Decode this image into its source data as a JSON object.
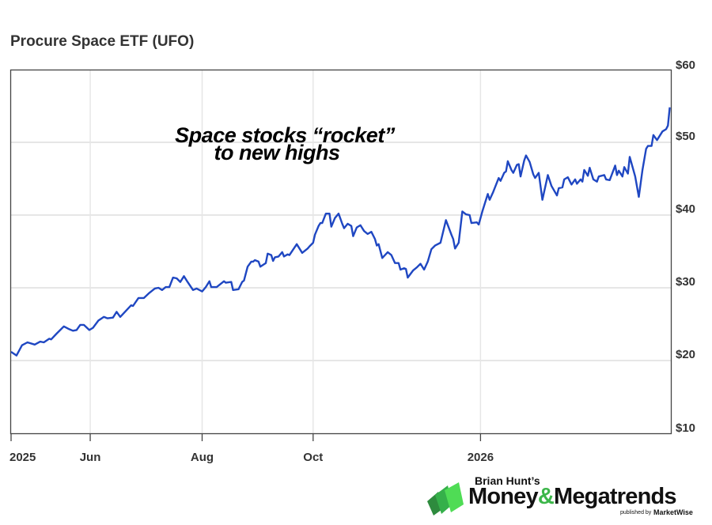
{
  "chart_data": {
    "type": "line",
    "title": "Procure Space ETF (UFO)",
    "annotation": [
      "Space stocks “rocket”",
      "to new highs"
    ],
    "xlabel": "",
    "ylabel": "",
    "x_unit": "days since first tick (2025)",
    "xlim": [
      0,
      362
    ],
    "ylim": [
      10,
      60
    ],
    "grid": true,
    "y_ticks": [
      {
        "value": 60,
        "label": "$60"
      },
      {
        "value": 50,
        "label": "$50"
      },
      {
        "value": 40,
        "label": "$40"
      },
      {
        "value": 30,
        "label": "$30"
      },
      {
        "value": 20,
        "label": "$20"
      },
      {
        "value": 10,
        "label": "$10"
      }
    ],
    "x_ticks": [
      {
        "value": 0,
        "label": "2025"
      },
      {
        "value": 43.5,
        "label": "Jun"
      },
      {
        "value": 105,
        "label": "Aug"
      },
      {
        "value": 166,
        "label": "Oct"
      },
      {
        "value": 258,
        "label": "2026"
      }
    ],
    "series": [
      {
        "name": "UFO",
        "color": "#1f47c2",
        "x": [
          0,
          3,
          6,
          9,
          13,
          16,
          18,
          21,
          22,
          25,
          29,
          32,
          34,
          36,
          38,
          40,
          43,
          45,
          48,
          51,
          53,
          56,
          58,
          60,
          63,
          66,
          67,
          70,
          73,
          76,
          79,
          81,
          83,
          85,
          87,
          89,
          91,
          93,
          95,
          97,
          100,
          102,
          105,
          107,
          109,
          110,
          113,
          117,
          118,
          121,
          122,
          125,
          127,
          128,
          130,
          132,
          133,
          134,
          136,
          137,
          140,
          141,
          143,
          144,
          145,
          147,
          149,
          150,
          152,
          153,
          157,
          160,
          163,
          164,
          166,
          167,
          169,
          170,
          171,
          173,
          175,
          176,
          178,
          180,
          182,
          183,
          185,
          187,
          188,
          190,
          192,
          194,
          196,
          198,
          200,
          201,
          202,
          204,
          207,
          209,
          211,
          213,
          214,
          216,
          217,
          218,
          221,
          223,
          225,
          227,
          229,
          231,
          233,
          236,
          239,
          242,
          243,
          244,
          246,
          248,
          250,
          252,
          253,
          256,
          257,
          259,
          262,
          263,
          265,
          268,
          269,
          271,
          272,
          273,
          275,
          276,
          278,
          279,
          280,
          282,
          283,
          285,
          287,
          288,
          290,
          292,
          295,
          297,
          300,
          301,
          303,
          304,
          306,
          308,
          310,
          311,
          313,
          314,
          315,
          317,
          318,
          320,
          322,
          323,
          326,
          327,
          329,
          332,
          333,
          334,
          336,
          337,
          339,
          340,
          343,
          345,
          347,
          349,
          350,
          352,
          353,
          355,
          358,
          360,
          361,
          362
        ],
        "values": [
          21.2,
          20.7,
          22.1,
          22.5,
          22.2,
          22.6,
          22.5,
          23.0,
          22.9,
          23.7,
          24.7,
          24.3,
          24.1,
          24.2,
          24.9,
          24.9,
          24.2,
          24.5,
          25.5,
          26.0,
          25.8,
          25.9,
          26.7,
          26.0,
          26.8,
          27.6,
          27.5,
          28.6,
          28.6,
          29.3,
          29.9,
          30.0,
          29.7,
          30.1,
          30.1,
          31.4,
          31.3,
          30.8,
          31.6,
          30.8,
          29.7,
          29.9,
          29.5,
          30.1,
          30.9,
          30.1,
          30.1,
          30.9,
          30.7,
          30.8,
          29.7,
          29.8,
          30.8,
          31.0,
          32.9,
          33.6,
          33.6,
          33.8,
          33.6,
          32.9,
          33.4,
          34.7,
          34.5,
          33.7,
          34.2,
          34.3,
          34.9,
          34.3,
          34.6,
          34.5,
          36.0,
          34.8,
          35.4,
          35.7,
          36.2,
          37.3,
          38.5,
          38.9,
          38.9,
          40.2,
          40.2,
          38.4,
          39.6,
          40.2,
          38.8,
          38.2,
          38.8,
          38.5,
          37.1,
          38.3,
          38.6,
          37.8,
          37.4,
          37.7,
          36.7,
          35.8,
          36.0,
          34.1,
          34.9,
          34.5,
          33.4,
          33.4,
          32.5,
          32.7,
          32.6,
          31.4,
          32.4,
          32.8,
          33.3,
          32.5,
          33.6,
          35.3,
          35.8,
          36.2,
          39.3,
          37.3,
          36.7,
          35.4,
          36.2,
          40.5,
          40.1,
          40.0,
          38.9,
          39.0,
          38.7,
          40.5,
          42.9,
          42.1,
          43.2,
          45.1,
          44.7,
          45.8,
          46.0,
          47.4,
          46.2,
          45.8,
          46.9,
          47.0,
          45.3,
          47.5,
          48.2,
          47.3,
          45.6,
          45.1,
          45.8,
          42.1,
          45.5,
          44.0,
          42.7,
          43.7,
          43.8,
          44.9,
          45.2,
          44.2,
          44.9,
          44.3,
          44.9,
          44.6,
          46.2,
          45.4,
          46.5,
          44.9,
          44.6,
          45.3,
          45.5,
          44.9,
          44.8,
          46.8,
          45.5,
          46.1,
          45.3,
          46.6,
          45.7,
          48.0,
          45.3,
          42.5,
          46.2,
          49.1,
          49.5,
          49.5,
          51.0,
          50.3,
          51.5,
          51.8,
          52.3,
          54.8
        ]
      }
    ]
  },
  "logo": {
    "byline": "Brian Hunt’s",
    "name_part1": "Money",
    "ampersand": "&",
    "name_part2": "Megatrends",
    "publisher_prefix": "published by",
    "publisher": "MarketWise"
  }
}
